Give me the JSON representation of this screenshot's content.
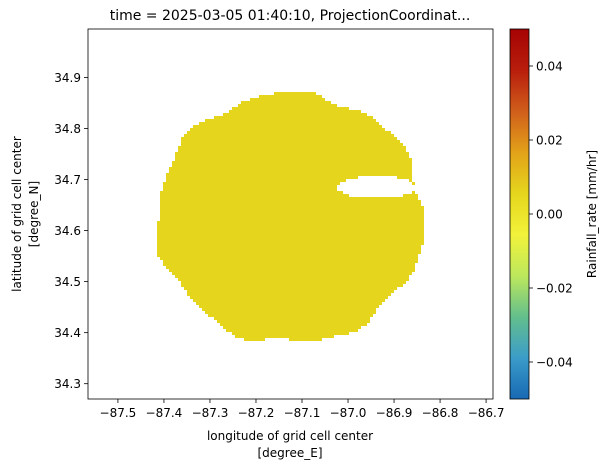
{
  "chart_data": {
    "type": "heatmap",
    "title": "time = 2025-03-05 01:40:10, ProjectionCoordinat...",
    "xlabel_line1": "longitude of grid cell center",
    "xlabel_line2": "[degree_E]",
    "ylabel_line1": "latitude of grid cell center",
    "ylabel_line2": "[degree_N]",
    "colorbar_label": "Rainfall_rate [mm/hr]",
    "xlim": [
      -87.565,
      -86.685
    ],
    "ylim": [
      34.27,
      34.995
    ],
    "xticks": [
      -87.5,
      -87.4,
      -87.3,
      -87.2,
      -87.1,
      -87.0,
      -86.9,
      -86.8,
      -86.7
    ],
    "xtick_labels": [
      "−87.5",
      "−87.4",
      "−87.3",
      "−87.2",
      "−87.1",
      "−87.0",
      "−86.9",
      "−86.8",
      "−86.7"
    ],
    "yticks": [
      34.3,
      34.4,
      34.5,
      34.6,
      34.7,
      34.8,
      34.9
    ],
    "ytick_labels": [
      "34.3",
      "34.4",
      "34.5",
      "34.6",
      "34.7",
      "34.8",
      "34.9"
    ],
    "colorbar_range": [
      -0.05,
      0.05
    ],
    "colorbar_ticks": [
      -0.04,
      -0.02,
      0.0,
      0.02,
      0.04
    ],
    "colorbar_tick_labels": [
      "−0.04",
      "−0.02",
      "0.00",
      "0.02",
      "0.04"
    ],
    "colormap": [
      "#1769b3",
      "#3b9cc9",
      "#63bf8c",
      "#bde85c",
      "#f2f23a",
      "#e5d61d",
      "#e2a219",
      "#d05e1b",
      "#b81d0c",
      "#a50303"
    ],
    "field": {
      "value": 0.0,
      "color": "#e5d61d",
      "center": [
        -87.125,
        34.625
      ],
      "radius_lon": 0.29,
      "radius_lat": 0.245,
      "notch_center": [
        -86.938,
        34.685
      ],
      "notch_radius_lon": 0.085,
      "notch_radius_lat": 0.022
    }
  }
}
